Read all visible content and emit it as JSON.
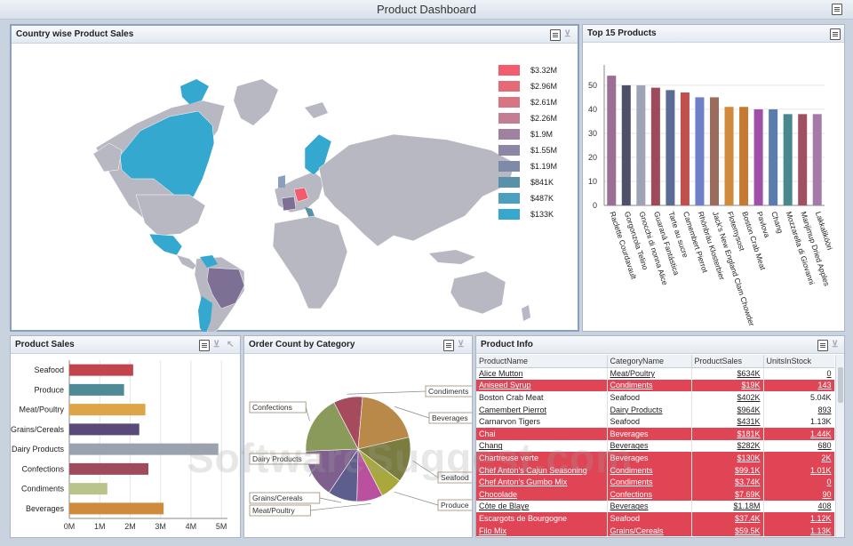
{
  "app": {
    "title": "Product Dashboard"
  },
  "watermark": "SoftwareSuggest.com",
  "country_sales": {
    "title": "Country wise Product Sales",
    "legend": [
      {
        "label": "$3.32M",
        "color": "#f25c6e"
      },
      {
        "label": "$2.96M",
        "color": "#e46a78"
      },
      {
        "label": "$2.61M",
        "color": "#d97482"
      },
      {
        "label": "$2.26M",
        "color": "#c47e93"
      },
      {
        "label": "$1.9M",
        "color": "#a0819f"
      },
      {
        "label": "$1.55M",
        "color": "#8e86a6"
      },
      {
        "label": "$1.19M",
        "color": "#7d8aa8"
      },
      {
        "label": "$841K",
        "color": "#5891a8"
      },
      {
        "label": "$487K",
        "color": "#4c9fbe"
      },
      {
        "label": "$133K",
        "color": "#35a8d0"
      }
    ]
  },
  "top_products": {
    "title": "Top 15 Products",
    "chart_data": {
      "type": "bar",
      "categories": [
        "Raclette Courdavault",
        "Gorgonzola Telino",
        "Gnocchi di nonna Alice",
        "Guaraná Fantástica",
        "Tarte au sucre",
        "Camembert Pierrot",
        "Rhönbräu Klosterbier",
        "Jack's New England Clam Chowder",
        "Flotemysost",
        "Boston Crab Meat",
        "Pavlova",
        "Chang",
        "Mozzarella di Giovanni",
        "Manjimup Dried Apples",
        "Lakkalikööri"
      ],
      "values": [
        54,
        50,
        50,
        49,
        48,
        47,
        45,
        45,
        41,
        41,
        40,
        40,
        38,
        38,
        38
      ],
      "colors": [
        "#9c6e96",
        "#4d5068",
        "#9ea3b6",
        "#a04a59",
        "#5c6a96",
        "#c0504d",
        "#6f7fc9",
        "#9b6b5c",
        "#d08a3c",
        "#c47a30",
        "#a050a8",
        "#5a7cae",
        "#4a8890",
        "#a05060",
        "#a57aa8"
      ],
      "yticks": [
        "0",
        "10",
        "20",
        "30",
        "40",
        "50"
      ],
      "ylim": [
        0,
        57
      ]
    }
  },
  "product_sales": {
    "title": "Product Sales",
    "chart_data": {
      "type": "bar",
      "categories": [
        "Seafood",
        "Produce",
        "Meat/Poultry",
        "Grains/Cereals",
        "Dairy Products",
        "Confections",
        "Condiments",
        "Beverages"
      ],
      "values": [
        2.1,
        1.8,
        2.5,
        2.3,
        4.9,
        2.6,
        1.25,
        3.1
      ],
      "colors": [
        "#c2454d",
        "#4f8b96",
        "#dfa448",
        "#5a4a7a",
        "#9aa2b0",
        "#a04b5c",
        "#b9c48a",
        "#d08a3c"
      ],
      "xticks": [
        "0M",
        "1M",
        "2M",
        "3M",
        "4M",
        "5M"
      ],
      "xlim": [
        0,
        5.2
      ]
    }
  },
  "order_count": {
    "title": "Order Count by Category",
    "chart_data": {
      "type": "pie",
      "labels": [
        "Condiments",
        "Beverages",
        "Seafood",
        "Produce",
        "Meat/Poultry",
        "Grains/Cereals",
        "Dairy Products",
        "Confections"
      ],
      "values": [
        9,
        20,
        14,
        7,
        8,
        9,
        15,
        18
      ],
      "colors": [
        "#a64b5e",
        "#b9894a",
        "#7b7c3f",
        "#a9a83c",
        "#b9519f",
        "#5e5e8e",
        "#7e5f8e",
        "#8a9a5a"
      ]
    }
  },
  "product_info": {
    "title": "Product Info",
    "columns": [
      "ProductName",
      "CategoryName",
      "ProductSales",
      "UnitsInStock"
    ],
    "rows": [
      {
        "name": "Alice Mutton",
        "category": "Meat/Poultry",
        "sales": "$634K",
        "stock": "0",
        "hl": false,
        "u": true
      },
      {
        "name": "Aniseed Syrup",
        "category": "Condiments",
        "sales": "$19K",
        "stock": "143",
        "hl": true,
        "u": true
      },
      {
        "name": "Boston Crab Meat",
        "category": "Seafood",
        "sales": "$402K",
        "stock": "5.04K",
        "hl": false,
        "u": false
      },
      {
        "name": "Camembert Pierrot",
        "category": "Dairy Products",
        "sales": "$964K",
        "stock": "893",
        "hl": false,
        "u": true
      },
      {
        "name": "Carnarvon Tigers",
        "category": "Seafood",
        "sales": "$431K",
        "stock": "1.13K",
        "hl": false,
        "u": false
      },
      {
        "name": "Chai",
        "category": "Beverages",
        "sales": "$181K",
        "stock": "1.44K",
        "hl": true,
        "u": false
      },
      {
        "name": "Chang",
        "category": "Beverages",
        "sales": "$282K",
        "stock": "680",
        "hl": false,
        "u": true
      },
      {
        "name": "Chartreuse verte",
        "category": "Beverages",
        "sales": "$130K",
        "stock": "2K",
        "hl": true,
        "u": false
      },
      {
        "name": "Chef Anton's Cajun Seasoning",
        "category": "Condiments",
        "sales": "$99.1K",
        "stock": "1.01K",
        "hl": true,
        "u": true
      },
      {
        "name": "Chef Anton's Gumbo Mix",
        "category": "Condiments",
        "sales": "$3.74K",
        "stock": "0",
        "hl": true,
        "u": true
      },
      {
        "name": "Chocolade",
        "category": "Confections",
        "sales": "$7.69K",
        "stock": "90",
        "hl": true,
        "u": true
      },
      {
        "name": "Côte de Blaye",
        "category": "Beverages",
        "sales": "$1.18M",
        "stock": "408",
        "hl": false,
        "u": true
      },
      {
        "name": "Escargots de Bourgogne",
        "category": "Seafood",
        "sales": "$37.4K",
        "stock": "1.12K",
        "hl": true,
        "u": false
      },
      {
        "name": "Filo Mix",
        "category": "Grains/Cereals",
        "sales": "$59.5K",
        "stock": "1.13K",
        "hl": true,
        "u": true
      }
    ]
  }
}
